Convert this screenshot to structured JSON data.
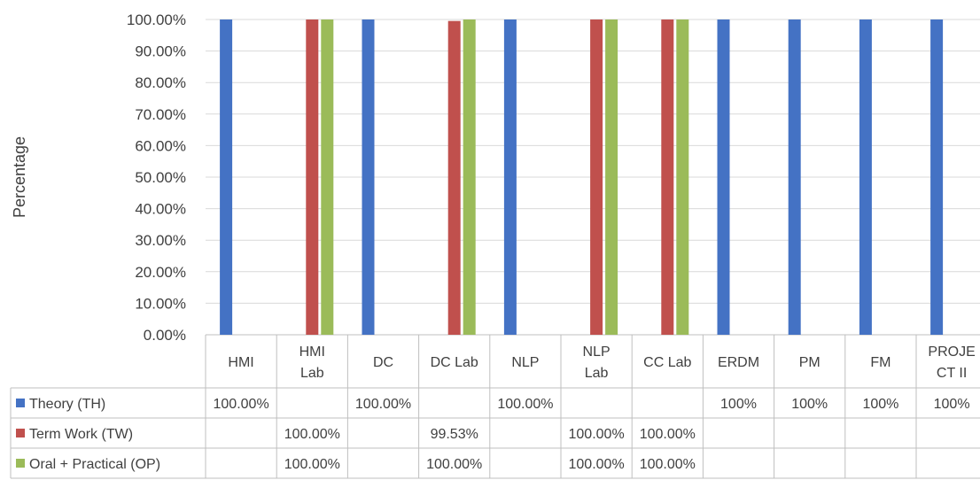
{
  "chart_data": {
    "type": "bar",
    "ylabel": "Percentage",
    "ylim": [
      0,
      100
    ],
    "y_ticks": [
      "0.00%",
      "10.00%",
      "20.00%",
      "30.00%",
      "40.00%",
      "50.00%",
      "60.00%",
      "70.00%",
      "80.00%",
      "90.00%",
      "100.00%"
    ],
    "grid": true,
    "legend_placement": "data-table-left",
    "categories": [
      [
        "HMI"
      ],
      [
        "HMI",
        "Lab"
      ],
      [
        "DC"
      ],
      [
        "DC Lab"
      ],
      [
        "NLP"
      ],
      [
        "NLP",
        "Lab"
      ],
      [
        "CC Lab"
      ],
      [
        "ERDM"
      ],
      [
        "PM"
      ],
      [
        "FM"
      ],
      [
        "PROJE",
        "CT II"
      ]
    ],
    "series": [
      {
        "name": "Theory (TH)",
        "color": "#4472C4",
        "values": [
          100,
          null,
          100,
          null,
          100,
          null,
          null,
          100,
          100,
          100,
          100
        ],
        "labels": [
          "100.00%",
          "",
          "100.00%",
          "",
          "100.00%",
          "",
          "",
          "100%",
          "100%",
          "100%",
          "100%"
        ]
      },
      {
        "name": "Term Work (TW)",
        "color": "#C0504D",
        "values": [
          null,
          100,
          null,
          99.53,
          null,
          100,
          100,
          null,
          null,
          null,
          null
        ],
        "labels": [
          "",
          "100.00%",
          "",
          "99.53%",
          "",
          "100.00%",
          "100.00%",
          "",
          "",
          "",
          ""
        ]
      },
      {
        "name": "Oral + Practical (OP)",
        "color": "#9BBB59",
        "values": [
          null,
          100,
          null,
          100,
          null,
          100,
          100,
          null,
          null,
          null,
          null
        ],
        "labels": [
          "",
          "100.00%",
          "",
          "100.00%",
          "",
          "100.00%",
          "100.00%",
          "",
          "",
          "",
          ""
        ]
      }
    ]
  }
}
